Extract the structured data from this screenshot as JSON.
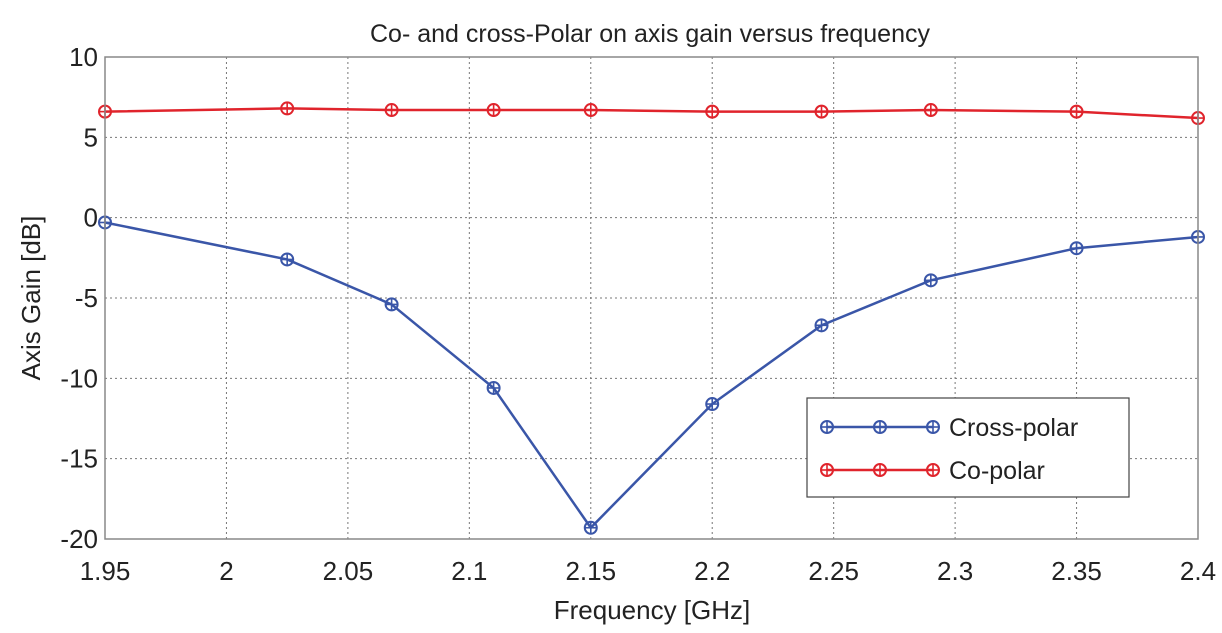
{
  "chart_data": {
    "type": "line",
    "title": "Co- and cross-Polar on axis gain versus frequency",
    "xlabel": "Frequency [GHz]",
    "ylabel": "Axis Gain [dB]",
    "xlim": [
      1.95,
      2.4
    ],
    "ylim": [
      -20,
      10
    ],
    "x_ticks": [
      "1.95",
      "2",
      "2.05",
      "2.1",
      "2.15",
      "2.2",
      "2.25",
      "2.3",
      "2.35",
      "2.4"
    ],
    "y_ticks": [
      "10",
      "5",
      "0",
      "-5",
      "-10",
      "-15",
      "-20"
    ],
    "grid": true,
    "legend_position": "lower-right",
    "series": [
      {
        "name": "Cross-polar",
        "color": "#3a56a8",
        "marker": "circle-cross",
        "x": [
          1.95,
          2.025,
          2.068,
          2.11,
          2.15,
          2.2,
          2.245,
          2.29,
          2.35,
          2.4
        ],
        "y": [
          -0.3,
          -2.6,
          -5.4,
          -10.6,
          -19.3,
          -11.6,
          -6.7,
          -3.9,
          -1.9,
          -1.2
        ]
      },
      {
        "name": "Co-polar",
        "color": "#e0242c",
        "marker": "circle-cross",
        "x": [
          1.95,
          2.025,
          2.068,
          2.11,
          2.15,
          2.2,
          2.245,
          2.29,
          2.35,
          2.4
        ],
        "y": [
          6.6,
          6.8,
          6.7,
          6.7,
          6.7,
          6.6,
          6.6,
          6.7,
          6.6,
          6.2
        ]
      }
    ]
  }
}
